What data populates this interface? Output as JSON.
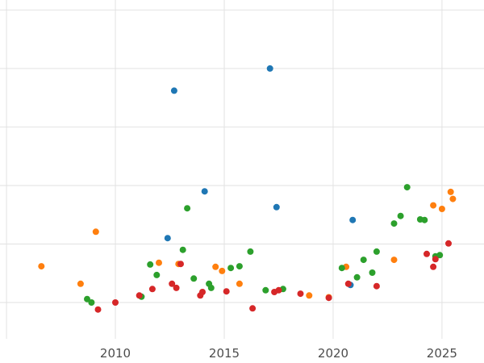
{
  "chart_data": {
    "type": "scatter",
    "title": "",
    "xlabel": "",
    "ylabel": "",
    "legend": "none",
    "grid": "on",
    "grid_color": "#e2e2e2",
    "background_color": "#ffffff",
    "tick_label_color": "#4d4d4d",
    "xlim": [
      2004.7,
      2026.93
    ],
    "ylim": [
      -0.62,
      5.17
    ],
    "x_gridlines": [
      2005,
      2010,
      2015,
      2020,
      2025
    ],
    "y_gridlines": [
      0,
      1,
      2,
      3,
      4,
      5
    ],
    "x_ticks": [
      2010,
      2015,
      2020,
      2025
    ],
    "x_tick_labels": [
      "2010",
      "2015",
      "2020",
      "2025"
    ],
    "y_tick_labels": [],
    "point_radius": 4,
    "series": [
      {
        "name": "series-blue",
        "color": "#1f77b4",
        "points": [
          [
            2012.7,
            3.62
          ],
          [
            2017.1,
            4.0
          ],
          [
            2014.1,
            1.9
          ],
          [
            2017.4,
            1.63
          ],
          [
            2020.9,
            1.41
          ],
          [
            2012.4,
            1.1
          ],
          [
            2020.8,
            0.3
          ]
        ]
      },
      {
        "name": "series-orange",
        "color": "#ff7f0e",
        "points": [
          [
            2006.6,
            0.62
          ],
          [
            2008.4,
            0.32
          ],
          [
            2009.1,
            1.21
          ],
          [
            2012.0,
            0.68
          ],
          [
            2012.9,
            0.66
          ],
          [
            2014.6,
            0.61
          ],
          [
            2014.9,
            0.54
          ],
          [
            2015.7,
            0.32
          ],
          [
            2018.9,
            0.12
          ],
          [
            2019.8,
            0.09
          ],
          [
            2020.6,
            0.61
          ],
          [
            2022.8,
            0.73
          ],
          [
            2024.6,
            1.66
          ],
          [
            2025.0,
            1.6
          ],
          [
            2025.4,
            1.89
          ],
          [
            2025.5,
            1.77
          ]
        ]
      },
      {
        "name": "series-green",
        "color": "#2ca02c",
        "points": [
          [
            2008.7,
            0.06
          ],
          [
            2008.9,
            0.0
          ],
          [
            2011.2,
            0.1
          ],
          [
            2011.6,
            0.65
          ],
          [
            2011.9,
            0.47
          ],
          [
            2013.1,
            0.9
          ],
          [
            2013.3,
            1.61
          ],
          [
            2013.6,
            0.41
          ],
          [
            2014.3,
            0.32
          ],
          [
            2014.4,
            0.25
          ],
          [
            2015.3,
            0.59
          ],
          [
            2015.7,
            0.62
          ],
          [
            2016.2,
            0.87
          ],
          [
            2016.9,
            0.21
          ],
          [
            2017.7,
            0.23
          ],
          [
            2020.4,
            0.59
          ],
          [
            2021.1,
            0.43
          ],
          [
            2021.4,
            0.73
          ],
          [
            2021.8,
            0.51
          ],
          [
            2022.0,
            0.87
          ],
          [
            2022.8,
            1.35
          ],
          [
            2023.1,
            1.48
          ],
          [
            2023.4,
            1.97
          ],
          [
            2024.0,
            1.42
          ],
          [
            2024.2,
            1.41
          ],
          [
            2024.7,
            0.79
          ],
          [
            2024.9,
            0.81
          ]
        ]
      },
      {
        "name": "series-red",
        "color": "#d62728",
        "points": [
          [
            2009.2,
            -0.12
          ],
          [
            2010.0,
            0.0
          ],
          [
            2011.1,
            0.12
          ],
          [
            2011.7,
            0.23
          ],
          [
            2012.6,
            0.32
          ],
          [
            2012.8,
            0.25
          ],
          [
            2013.0,
            0.66
          ],
          [
            2013.9,
            0.12
          ],
          [
            2014.0,
            0.18
          ],
          [
            2015.1,
            0.19
          ],
          [
            2016.3,
            -0.1
          ],
          [
            2017.3,
            0.18
          ],
          [
            2017.5,
            0.21
          ],
          [
            2018.5,
            0.15
          ],
          [
            2019.8,
            0.08
          ],
          [
            2020.7,
            0.32
          ],
          [
            2022.0,
            0.28
          ],
          [
            2024.3,
            0.83
          ],
          [
            2024.6,
            0.61
          ],
          [
            2024.7,
            0.74
          ],
          [
            2025.3,
            1.01
          ]
        ]
      }
    ]
  }
}
